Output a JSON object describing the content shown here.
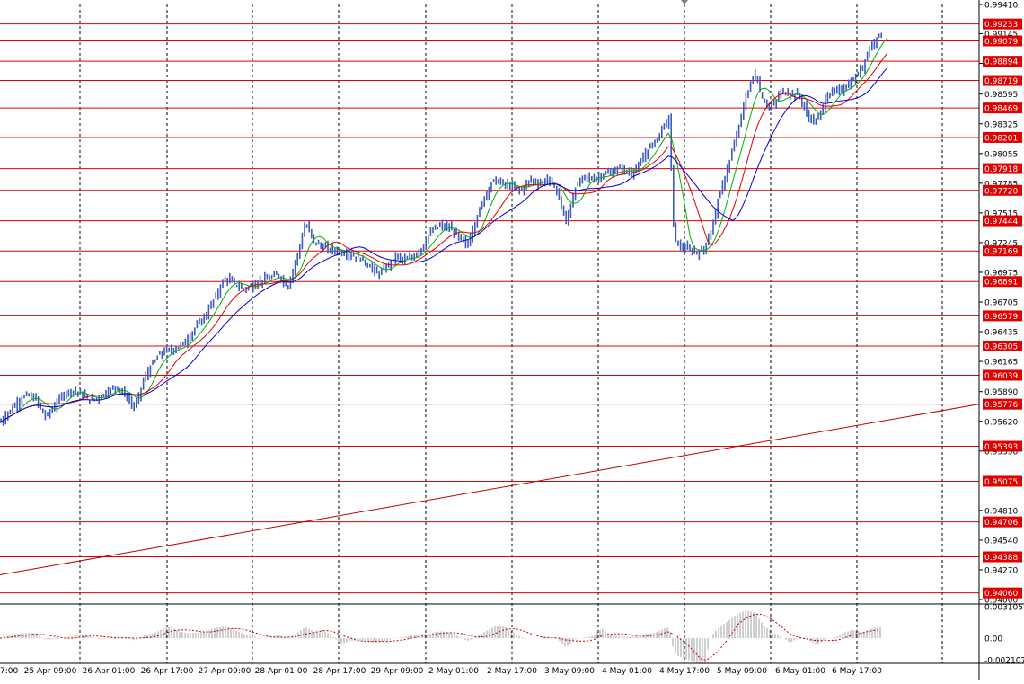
{
  "chart_data": {
    "type": "candlestick",
    "symbol_timeframe": "",
    "colors": {
      "background": "#ffffff",
      "grid": "#000000",
      "candles": "#3a5bc0",
      "ma_fast": "#00b000",
      "ma_mid": "#e00000",
      "ma_slow": "#0000d0",
      "level_lines": "#e00000",
      "level_label_bg": "#e00000",
      "level_label_text": "#ffffff",
      "trendline": "#c00000",
      "histogram": "#a0a0a0",
      "signal": "#c00000"
    },
    "price_axis": {
      "range": [
        0.94,
        0.9941
      ],
      "tick_labels": [
        "0.99410",
        "0.99145",
        "0.98875",
        "0.98595",
        "0.98325",
        "0.98055",
        "0.97785",
        "0.97515",
        "0.97245",
        "0.96975",
        "0.96705",
        "0.96435",
        "0.96165",
        "0.95890",
        "0.95620",
        "0.95350",
        "0.94810",
        "0.94540",
        "0.94270",
        "0.94000"
      ],
      "tick_values": [
        0.9941,
        0.99145,
        0.98875,
        0.98595,
        0.98325,
        0.98055,
        0.97785,
        0.97515,
        0.97245,
        0.96975,
        0.96705,
        0.96435,
        0.96165,
        0.9589,
        0.9562,
        0.9535,
        0.9481,
        0.9454,
        0.9427,
        0.94
      ]
    },
    "levels": [
      "0.99233",
      "0.99079",
      "0.98894",
      "0.98719",
      "0.98469",
      "0.98201",
      "0.97918",
      "0.97720",
      "0.97444",
      "0.97169",
      "0.96891",
      "0.96579",
      "0.96305",
      "0.96039",
      "0.95776",
      "0.95393",
      "0.95075",
      "0.94706",
      "0.94388",
      "0.94060"
    ],
    "level_values": [
      0.99233,
      0.99079,
      0.98894,
      0.98719,
      0.98469,
      0.98201,
      0.97918,
      0.9772,
      0.97444,
      0.97169,
      0.96891,
      0.96579,
      0.96305,
      0.96039,
      0.95776,
      0.95393,
      0.95075,
      0.94706,
      0.94388,
      0.9406
    ],
    "time_labels": [
      "7:00",
      "25 Apr 09:00",
      "26 Apr 01:00",
      "26 Apr 17:00",
      "27 Apr 09:00",
      "28 Apr 01:00",
      "28 Apr 17:00",
      "29 Apr 09:00",
      "2 May 01:00",
      "2 May 17:00",
      "3 May 09:00",
      "4 May 01:00",
      "4 May 17:00",
      "5 May 09:00",
      "6 May 01:00",
      "6 May 17:00"
    ],
    "price_series": [
      [
        0,
        0.9561
      ],
      [
        10,
        0.9571
      ],
      [
        20,
        0.958
      ],
      [
        30,
        0.9586
      ],
      [
        40,
        0.9582
      ],
      [
        50,
        0.9566
      ],
      [
        60,
        0.9575
      ],
      [
        70,
        0.9587
      ],
      [
        80,
        0.959
      ],
      [
        90,
        0.9587
      ],
      [
        100,
        0.9581
      ],
      [
        110,
        0.9584
      ],
      [
        120,
        0.9589
      ],
      [
        130,
        0.9594
      ],
      [
        140,
        0.9585
      ],
      [
        150,
        0.9574
      ],
      [
        160,
        0.96
      ],
      [
        170,
        0.9615
      ],
      [
        180,
        0.9625
      ],
      [
        190,
        0.9627
      ],
      [
        200,
        0.963
      ],
      [
        210,
        0.9638
      ],
      [
        220,
        0.965
      ],
      [
        230,
        0.966
      ],
      [
        240,
        0.9676
      ],
      [
        250,
        0.9692
      ],
      [
        260,
        0.9688
      ],
      [
        270,
        0.9682
      ],
      [
        280,
        0.9685
      ],
      [
        290,
        0.969
      ],
      [
        300,
        0.9692
      ],
      [
        310,
        0.9696
      ],
      [
        320,
        0.9683
      ],
      [
        330,
        0.971
      ],
      [
        340,
        0.9742
      ],
      [
        350,
        0.9725
      ],
      [
        360,
        0.972
      ],
      [
        370,
        0.9718
      ],
      [
        380,
        0.9716
      ],
      [
        390,
        0.9713
      ],
      [
        400,
        0.9711
      ],
      [
        410,
        0.9704
      ],
      [
        420,
        0.9696
      ],
      [
        430,
        0.9702
      ],
      [
        440,
        0.9712
      ],
      [
        450,
        0.9708
      ],
      [
        460,
        0.9712
      ],
      [
        470,
        0.972
      ],
      [
        480,
        0.9735
      ],
      [
        490,
        0.974
      ],
      [
        500,
        0.9738
      ],
      [
        510,
        0.973
      ],
      [
        520,
        0.9722
      ],
      [
        530,
        0.9745
      ],
      [
        540,
        0.9768
      ],
      [
        550,
        0.9782
      ],
      [
        560,
        0.9778
      ],
      [
        570,
        0.9775
      ],
      [
        580,
        0.9772
      ],
      [
        590,
        0.9782
      ],
      [
        600,
        0.9778
      ],
      [
        610,
        0.9782
      ],
      [
        620,
        0.9772
      ],
      [
        630,
        0.9742
      ],
      [
        640,
        0.9773
      ],
      [
        650,
        0.9785
      ],
      [
        660,
        0.9782
      ],
      [
        670,
        0.9786
      ],
      [
        680,
        0.9788
      ],
      [
        690,
        0.9792
      ],
      [
        700,
        0.9788
      ],
      [
        710,
        0.9792
      ],
      [
        720,
        0.9808
      ],
      [
        730,
        0.9818
      ],
      [
        740,
        0.9832
      ],
      [
        745,
        0.9838
      ],
      [
        750,
        0.9735
      ],
      [
        755,
        0.9722
      ],
      [
        760,
        0.972
      ],
      [
        770,
        0.9717
      ],
      [
        780,
        0.9715
      ],
      [
        790,
        0.973
      ],
      [
        800,
        0.9765
      ],
      [
        810,
        0.9792
      ],
      [
        820,
        0.9822
      ],
      [
        830,
        0.9856
      ],
      [
        840,
        0.988
      ],
      [
        850,
        0.9852
      ],
      [
        860,
        0.9848
      ],
      [
        870,
        0.9862
      ],
      [
        880,
        0.986
      ],
      [
        890,
        0.9858
      ],
      [
        900,
        0.9838
      ],
      [
        910,
        0.9835
      ],
      [
        920,
        0.9858
      ],
      [
        930,
        0.9862
      ],
      [
        940,
        0.9865
      ],
      [
        950,
        0.9872
      ],
      [
        960,
        0.9885
      ],
      [
        970,
        0.9905
      ],
      [
        980,
        0.9915
      ]
    ],
    "trendline": [
      [
        0,
        0.94225
      ],
      [
        1090,
        0.95776
      ]
    ],
    "oscillator": {
      "tick_labels": [
        "0.003105",
        "0.00",
        "-0.002107"
      ],
      "tick_values": [
        0.003105,
        0.0,
        -0.002107
      ]
    }
  }
}
